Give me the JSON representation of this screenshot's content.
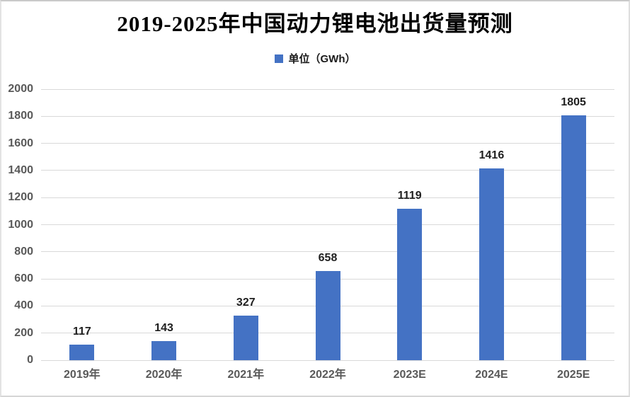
{
  "chart_data": {
    "type": "bar",
    "title": "2019-2025年中国动力锂电池出货量预测",
    "legend_entries": [
      "单位（GWh）"
    ],
    "legend_position": "top",
    "categories": [
      "2019年",
      "2020年",
      "2021年",
      "2022年",
      "2023E",
      "2024E",
      "2025E"
    ],
    "values": [
      117,
      143,
      327,
      658,
      1119,
      1416,
      1805
    ],
    "xlabel": "",
    "ylabel": "",
    "ylim": [
      0,
      2000
    ],
    "ytick_step": 200,
    "grid": true,
    "bar_color": "#4472C4",
    "gridline_color": "#D9D9D9",
    "axis_tick_color": "#595959",
    "value_label_color": "#1f1f1f",
    "background_color": "#FFFFFF"
  }
}
